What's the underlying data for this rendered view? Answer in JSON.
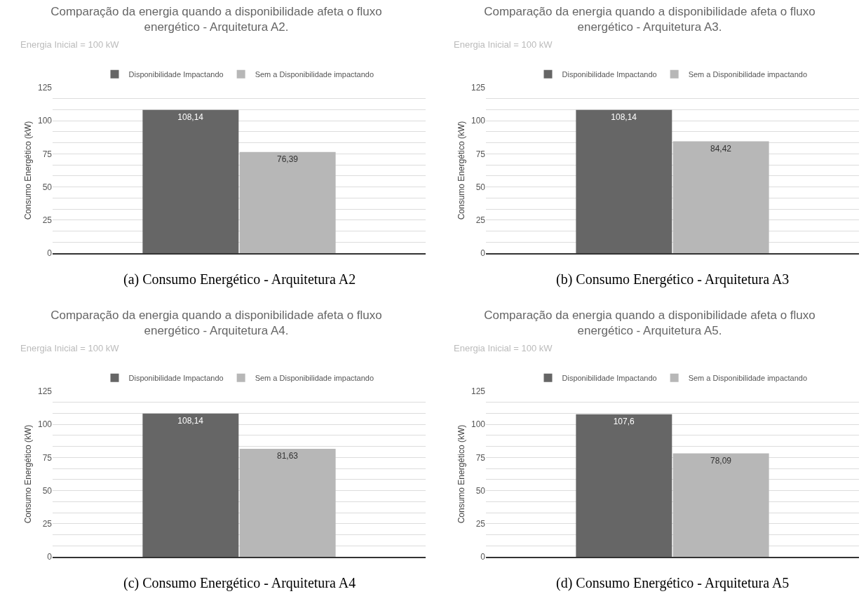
{
  "chart_data": [
    {
      "type": "bar",
      "title": "Comparação da energia quando a disponibilidade afeta o fluxo energético - Arquitetura A2.",
      "subtitle": "Energia Inicial = 100 kW",
      "ylabel": "Consumo Energético (kW)",
      "categories": [
        null
      ],
      "series": [
        {
          "name": "Disponibilidade Impactando",
          "color": "#666666",
          "values": [
            108.14
          ],
          "value_labels": [
            "108,14"
          ]
        },
        {
          "name": "Sem a Disponibilidade impactando",
          "color": "#b7b7b7",
          "values": [
            76.39
          ],
          "value_labels": [
            "76,39"
          ]
        }
      ],
      "ylim": [
        0,
        125
      ],
      "yticks": [
        0,
        {
          "value": 8.33,
          "label": null
        },
        {
          "value": 16.67,
          "label": null
        },
        25,
        {
          "value": 33.33,
          "label": null
        },
        {
          "value": 41.67,
          "label": null
        },
        50,
        {
          "value": 58.33,
          "label": null
        },
        {
          "value": 66.67,
          "label": null
        },
        75,
        {
          "value": 83.33,
          "label": null
        },
        {
          "value": 91.67,
          "label": null
        },
        100,
        {
          "value": 108.33,
          "label": null
        },
        {
          "value": 116.67,
          "label": null
        },
        125
      ],
      "grid": "y",
      "legend": "top",
      "annotations": [
        "(a) Consumo Energético - Arquitetura A2"
      ]
    },
    {
      "type": "bar",
      "title": "Comparação da energia quando a disponibilidade afeta o fluxo energético - Arquitetura A3.",
      "subtitle": "Energia Inicial = 100 kW",
      "ylabel": "Consumo Energético (kW)",
      "categories": [
        null
      ],
      "series": [
        {
          "name": "Disponibilidade Impactando",
          "color": "#666666",
          "values": [
            108.14
          ],
          "value_labels": [
            "108,14"
          ]
        },
        {
          "name": "Sem a Disponibilidade impactando",
          "color": "#b7b7b7",
          "values": [
            84.42
          ],
          "value_labels": [
            "84,42"
          ]
        }
      ],
      "ylim": [
        0,
        125
      ],
      "yticks": [
        0,
        {
          "value": 8.33,
          "label": null
        },
        {
          "value": 16.67,
          "label": null
        },
        25,
        {
          "value": 33.33,
          "label": null
        },
        {
          "value": 41.67,
          "label": null
        },
        50,
        {
          "value": 58.33,
          "label": null
        },
        {
          "value": 66.67,
          "label": null
        },
        75,
        {
          "value": 83.33,
          "label": null
        },
        {
          "value": 91.67,
          "label": null
        },
        100,
        {
          "value": 108.33,
          "label": null
        },
        {
          "value": 116.67,
          "label": null
        },
        125
      ],
      "grid": "y",
      "legend": "top",
      "annotations": [
        "(b) Consumo Energético - Arquitetura A3"
      ]
    },
    {
      "type": "bar",
      "title": "Comparação da energia quando a disponibilidade afeta o fluxo energético - Arquitetura A4.",
      "subtitle": "Energia Inicial = 100 kW",
      "ylabel": "Consumo Energético (kW)",
      "categories": [
        null
      ],
      "series": [
        {
          "name": "Disponibilidade Impactando",
          "color": "#666666",
          "values": [
            108.14
          ],
          "value_labels": [
            "108,14"
          ]
        },
        {
          "name": "Sem a Disponibilidade impactando",
          "color": "#b7b7b7",
          "values": [
            81.63
          ],
          "value_labels": [
            "81,63"
          ]
        }
      ],
      "ylim": [
        0,
        125
      ],
      "yticks": [
        0,
        {
          "value": 8.33,
          "label": null
        },
        {
          "value": 16.67,
          "label": null
        },
        25,
        {
          "value": 33.33,
          "label": null
        },
        {
          "value": 41.67,
          "label": null
        },
        50,
        {
          "value": 58.33,
          "label": null
        },
        {
          "value": 66.67,
          "label": null
        },
        75,
        {
          "value": 83.33,
          "label": null
        },
        {
          "value": 91.67,
          "label": null
        },
        100,
        {
          "value": 108.33,
          "label": null
        },
        {
          "value": 116.67,
          "label": null
        },
        125
      ],
      "grid": "y",
      "legend": "top",
      "annotations": [
        "(c) Consumo Energético - Arquitetura A4"
      ]
    },
    {
      "type": "bar",
      "title": "Comparação da energia quando a disponibilidade afeta o fluxo energético - Arquitetura A5.",
      "subtitle": "Energia Inicial = 100 kW",
      "ylabel": "Consumo Energético (kW)",
      "categories": [
        null
      ],
      "series": [
        {
          "name": "Disponibilidade Impactando",
          "color": "#666666",
          "values": [
            107.6
          ],
          "value_labels": [
            "107,6"
          ]
        },
        {
          "name": "Sem a Disponibilidade impactando",
          "color": "#b7b7b7",
          "values": [
            78.09
          ],
          "value_labels": [
            "78,09"
          ]
        }
      ],
      "ylim": [
        0,
        125
      ],
      "yticks": [
        0,
        {
          "value": 8.33,
          "label": null
        },
        {
          "value": 16.67,
          "label": null
        },
        25,
        {
          "value": 33.33,
          "label": null
        },
        {
          "value": 41.67,
          "label": null
        },
        50,
        {
          "value": 58.33,
          "label": null
        },
        {
          "value": 66.67,
          "label": null
        },
        75,
        {
          "value": 83.33,
          "label": null
        },
        {
          "value": 91.67,
          "label": null
        },
        100,
        {
          "value": 108.33,
          "label": null
        },
        {
          "value": 116.67,
          "label": null
        },
        125
      ],
      "grid": "y",
      "legend": "top",
      "annotations": [
        "(d) Consumo Energético - Arquitetura A5"
      ]
    }
  ]
}
